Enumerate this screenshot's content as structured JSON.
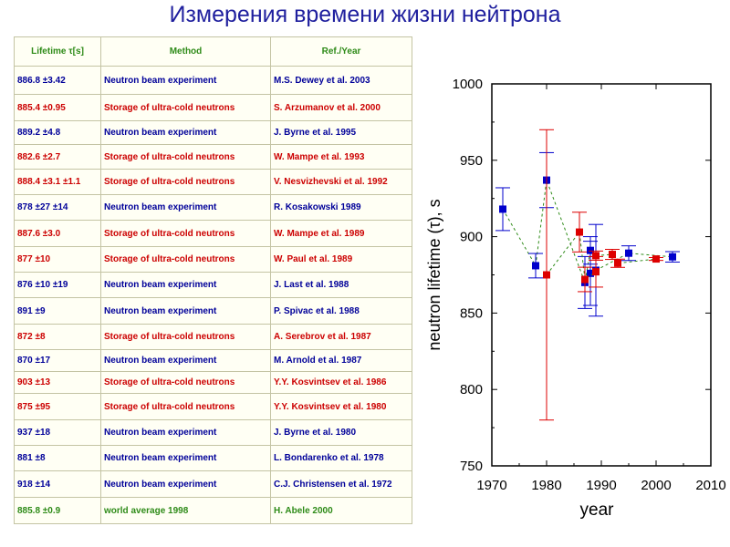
{
  "title": "Измерения времени жизни нейтрона",
  "table": {
    "headers": [
      "Lifetime τ[s]",
      "Method",
      "Ref./Year"
    ],
    "rows": [
      {
        "lifetime": "886.8 ±3.42",
        "method": "Neutron beam experiment",
        "ref": "M.S. Dewey et al. 2003",
        "kind": "beam"
      },
      {
        "lifetime": "885.4 ±0.95",
        "method": "Storage of ultra-cold neutrons",
        "ref": "S. Arzumanov et al. 2000",
        "kind": "storage"
      },
      {
        "lifetime": "889.2 ±4.8",
        "method": "Neutron beam experiment",
        "ref": "J. Byrne et al. 1995",
        "kind": "beam"
      },
      {
        "lifetime": "882.6 ±2.7",
        "method": "Storage of ultra-cold neutrons",
        "ref": "W. Mampe et al. 1993",
        "kind": "storage"
      },
      {
        "lifetime": "888.4 ±3.1 ±1.1",
        "method": "Storage of ultra-cold neutrons",
        "ref": "V. Nesvizhevski et al. 1992",
        "kind": "storage"
      },
      {
        "lifetime": "878 ±27 ±14",
        "method": "Neutron beam experiment",
        "ref": "R. Kosakowski 1989",
        "kind": "beam"
      },
      {
        "lifetime": "887.6 ±3.0",
        "method": "Storage of ultra-cold neutrons",
        "ref": "W. Mampe et al. 1989",
        "kind": "storage"
      },
      {
        "lifetime": "877 ±10",
        "method": "Storage of ultra-cold neutrons",
        "ref": "W. Paul et al. 1989",
        "kind": "storage"
      },
      {
        "lifetime": "876 ±10 ±19",
        "method": "Neutron beam experiment",
        "ref": "J. Last et al. 1988",
        "kind": "beam"
      },
      {
        "lifetime": "891 ±9",
        "method": "Neutron beam experiment",
        "ref": "P. Spivac et al. 1988",
        "kind": "beam"
      },
      {
        "lifetime": "872 ±8",
        "method": "Storage of ultra-cold neutrons",
        "ref": "A. Serebrov et al. 1987",
        "kind": "storage"
      },
      {
        "lifetime": "870 ±17",
        "method": "Neutron beam experiment",
        "ref": "M. Arnold et al. 1987",
        "kind": "beam"
      },
      {
        "lifetime": "903 ±13",
        "method": "Storage of ultra-cold neutrons",
        "ref": "Y.Y. Kosvintsev et al. 1986",
        "kind": "storage"
      },
      {
        "lifetime": "875 ±95",
        "method": "Storage of ultra-cold neutrons",
        "ref": "Y.Y. Kosvintsev et al. 1980",
        "kind": "storage"
      },
      {
        "lifetime": "937 ±18",
        "method": "Neutron beam experiment",
        "ref": "J. Byrne et al. 1980",
        "kind": "beam"
      },
      {
        "lifetime": "881 ±8",
        "method": "Neutron beam experiment",
        "ref": "L. Bondarenko et al. 1978",
        "kind": "beam"
      },
      {
        "lifetime": "918 ±14",
        "method": "Neutron beam experiment",
        "ref": "C.J. Christensen et al. 1972",
        "kind": "beam"
      },
      {
        "lifetime": "885.8 ±0.9",
        "method": "world average 1998",
        "ref": "H. Abele 2000",
        "kind": "average"
      }
    ]
  },
  "colors": {
    "beam": "#0000cc",
    "storage": "#dd0000",
    "average": "#2e8b18",
    "header": "#2e8b18",
    "title": "#1f1f9e"
  },
  "chart_data": {
    "type": "scatter",
    "xlabel": "year",
    "ylabel": "neutron lifetime (τ), s",
    "xlim": [
      1970,
      2010
    ],
    "ylim": [
      750,
      1000
    ],
    "xticks": [
      1970,
      1980,
      1990,
      2000,
      2010
    ],
    "yticks": [
      750,
      800,
      850,
      900,
      950,
      1000
    ],
    "grid": false,
    "series": [
      {
        "color": "#0000cc",
        "points": [
          {
            "x": 1972,
            "y": 918,
            "err": 14
          },
          {
            "x": 1978,
            "y": 881,
            "err": 8
          },
          {
            "x": 1980,
            "y": 937,
            "err": 18
          },
          {
            "x": 1987,
            "y": 870,
            "err": 17
          },
          {
            "x": 1988,
            "y": 891,
            "err": 9
          },
          {
            "x": 1988,
            "y": 876,
            "err": 21
          },
          {
            "x": 1989,
            "y": 878,
            "err": 30
          },
          {
            "x": 1995,
            "y": 889.2,
            "err": 4.8
          },
          {
            "x": 2003,
            "y": 886.8,
            "err": 3.42
          }
        ]
      },
      {
        "color": "#dd0000",
        "points": [
          {
            "x": 1980,
            "y": 875,
            "err": 95
          },
          {
            "x": 1986,
            "y": 903,
            "err": 13
          },
          {
            "x": 1987,
            "y": 872,
            "err": 8
          },
          {
            "x": 1989,
            "y": 877,
            "err": 10
          },
          {
            "x": 1989,
            "y": 887.6,
            "err": 3.0
          },
          {
            "x": 1992,
            "y": 888.4,
            "err": 3.3
          },
          {
            "x": 1993,
            "y": 882.6,
            "err": 2.7
          },
          {
            "x": 2000,
            "y": 885.4,
            "err": 0.95
          }
        ]
      }
    ]
  }
}
